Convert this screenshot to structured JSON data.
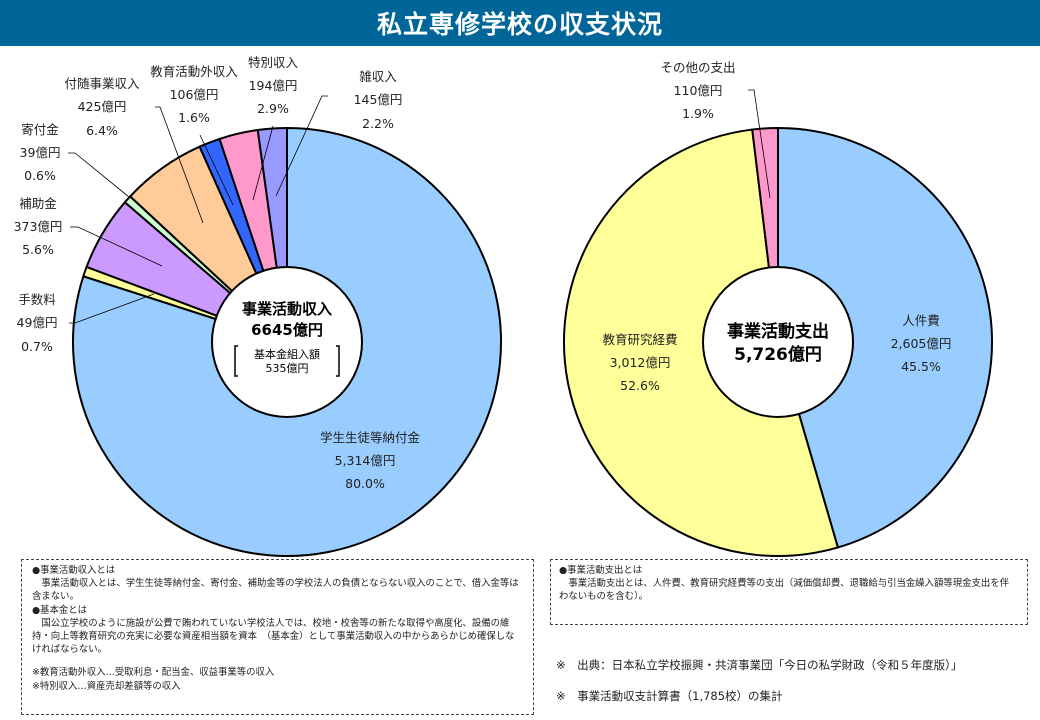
{
  "title": "私立専修学校の収支状況",
  "chart_data": [
    {
      "type": "pie",
      "name": "income",
      "center_title": "事業活動収入",
      "center_total": "6645億円",
      "center_sub_label": "基本金組入額",
      "center_sub_value": "535億円",
      "slices": [
        {
          "label": "学生生徒等納付金",
          "amount": "5,314億円",
          "value": 5314,
          "percent": "80.0%",
          "color": "#99CCFF"
        },
        {
          "label": "手数料",
          "amount": "49億円",
          "value": 49,
          "percent": "0.7%",
          "color": "#FFFF99"
        },
        {
          "label": "補助金",
          "amount": "373億円",
          "value": 373,
          "percent": "5.6%",
          "color": "#CC99FF"
        },
        {
          "label": "寄付金",
          "amount": "39億円",
          "value": 39,
          "percent": "0.6%",
          "color": "#CCFFCC"
        },
        {
          "label": "付随事業収入",
          "amount": "425億円",
          "value": 425,
          "percent": "6.4%",
          "color": "#FFCC99"
        },
        {
          "label": "教育活動外収入",
          "amount": "106億円",
          "value": 106,
          "percent": "1.6%",
          "color": "#3366FF"
        },
        {
          "label": "特別収入",
          "amount": "194億円",
          "value": 194,
          "percent": "2.9%",
          "color": "#FF99CC"
        },
        {
          "label": "雑収入",
          "amount": "145億円",
          "value": 145,
          "percent": "2.2%",
          "color": "#9999FF"
        }
      ]
    },
    {
      "type": "pie",
      "name": "expenditure",
      "center_title": "事業活動支出",
      "center_total": "5,726億円",
      "slices": [
        {
          "label": "人件費",
          "amount": "2,605億円",
          "value": 2605,
          "percent": "45.5%",
          "color": "#99CCFF"
        },
        {
          "label": "教育研究経費",
          "amount": "3,012億円",
          "value": 3012,
          "percent": "52.6%",
          "color": "#FFFF99"
        },
        {
          "label": "その他の支出",
          "amount": "110億円",
          "value": 110,
          "percent": "1.9%",
          "color": "#FF99CC"
        }
      ]
    }
  ],
  "notes_left": {
    "h1": "●事業活動収入とは",
    "p1": "事業活動収入とは、学生生徒等納付金、寄付金、補助金等の学校法人の負債とならない収入のことで、借入金等は含まない。",
    "h2": "●基本金とは",
    "p2": "国公立学校のように施設が公費で賄われていない学校法人では、校地・校舎等の新たな取得や高度化、設備の維持・向上等教育研究の充実に必要な資産相当額を資本　（基本金）として事業活動収入の中からあらかじめ確保しなければならない。",
    "n1": "※教育活動外収入…受取利息・配当金、収益事業等の収入",
    "n2": "※特別収入…資産売却差額等の収入"
  },
  "notes_right": {
    "h1": "●事業活動支出とは",
    "p1": "事業活動支出とは、人件費、教育研究経費等の支出（減価償却費、退職給与引当金繰入額等現金支出を伴わないものを含む）。"
  },
  "sources": [
    "※　出典：日本私立学校振興・共済事業団「今日の私学財政（令和５年度版）」",
    "※　事業活動収支計算書（1,785校）の集計"
  ]
}
